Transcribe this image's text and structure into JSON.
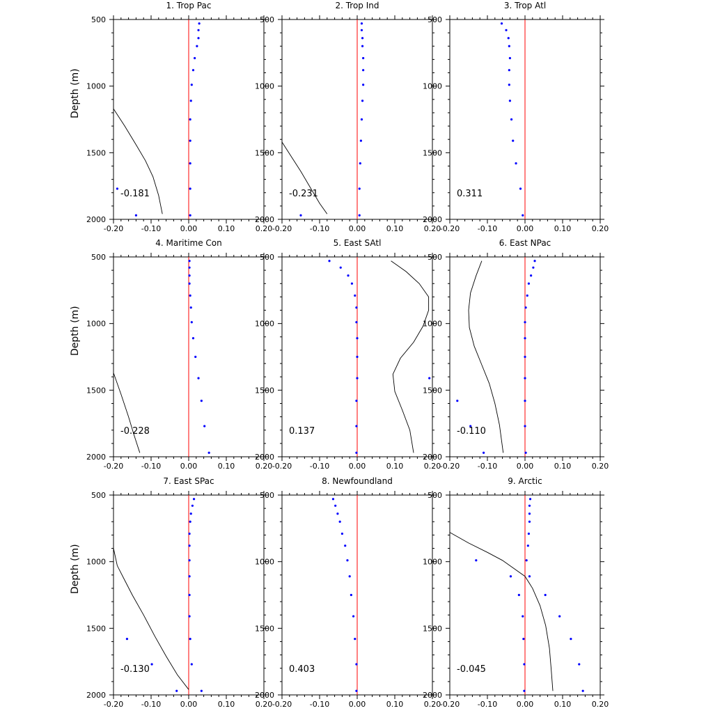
{
  "chart_data": {
    "type": "scatter",
    "ylabel": "Depth (m)",
    "xlim": [
      -0.2,
      0.2
    ],
    "ylim": [
      500,
      2000
    ],
    "y_inverted": true,
    "grid": false,
    "xticks": [
      "-0.20",
      "-0.10",
      "0.00",
      "0.10",
      "0.20"
    ],
    "yticks": [
      "500",
      "1000",
      "1500",
      "2000"
    ],
    "colors": {
      "points": "#0000ff",
      "zero_line": "#ff0000",
      "curve": "#000000"
    },
    "panels": [
      {
        "title": "1. Trop Pac",
        "corr": "-0.181",
        "points": [
          [
            0.028,
            530
          ],
          [
            0.026,
            580
          ],
          [
            0.026,
            640
          ],
          [
            0.022,
            700
          ],
          [
            0.016,
            790
          ],
          [
            0.012,
            880
          ],
          [
            0.008,
            990
          ],
          [
            0.006,
            1110
          ],
          [
            0.004,
            1250
          ],
          [
            0.004,
            1410
          ],
          [
            0.004,
            1580
          ],
          [
            0.004,
            1770
          ],
          [
            0.004,
            1970
          ],
          [
            -0.19,
            1770
          ],
          [
            -0.14,
            1970
          ]
        ],
        "curve": [
          [
            -0.2,
            1170
          ],
          [
            -0.17,
            1300
          ],
          [
            -0.14,
            1440
          ],
          [
            -0.115,
            1560
          ],
          [
            -0.095,
            1680
          ],
          [
            -0.08,
            1820
          ],
          [
            -0.07,
            1960
          ]
        ]
      },
      {
        "title": "2. Trop Ind",
        "corr": "-0.231",
        "points": [
          [
            0.012,
            530
          ],
          [
            0.012,
            580
          ],
          [
            0.014,
            640
          ],
          [
            0.014,
            700
          ],
          [
            0.016,
            790
          ],
          [
            0.016,
            880
          ],
          [
            0.016,
            990
          ],
          [
            0.014,
            1110
          ],
          [
            0.012,
            1250
          ],
          [
            0.01,
            1410
          ],
          [
            0.008,
            1580
          ],
          [
            0.006,
            1770
          ],
          [
            0.006,
            1970
          ],
          [
            -0.15,
            1970
          ]
        ],
        "curve": [
          [
            -0.2,
            1420
          ],
          [
            -0.175,
            1530
          ],
          [
            -0.15,
            1640
          ],
          [
            -0.125,
            1760
          ],
          [
            -0.1,
            1880
          ],
          [
            -0.08,
            1960
          ]
        ]
      },
      {
        "title": "3. Trop Atl",
        "corr": "0.311",
        "points": [
          [
            -0.062,
            530
          ],
          [
            -0.05,
            580
          ],
          [
            -0.044,
            640
          ],
          [
            -0.042,
            700
          ],
          [
            -0.04,
            790
          ],
          [
            -0.042,
            880
          ],
          [
            -0.042,
            990
          ],
          [
            -0.04,
            1110
          ],
          [
            -0.036,
            1250
          ],
          [
            -0.032,
            1410
          ],
          [
            -0.024,
            1580
          ],
          [
            -0.012,
            1770
          ],
          [
            -0.006,
            1970
          ]
        ],
        "curve": []
      },
      {
        "title": "4. Maritime Con",
        "corr": "-0.228",
        "points": [
          [
            0.002,
            530
          ],
          [
            0.002,
            580
          ],
          [
            0.002,
            640
          ],
          [
            0.002,
            700
          ],
          [
            0.004,
            790
          ],
          [
            0.006,
            880
          ],
          [
            0.008,
            990
          ],
          [
            0.012,
            1110
          ],
          [
            0.018,
            1250
          ],
          [
            0.026,
            1410
          ],
          [
            0.034,
            1580
          ],
          [
            0.042,
            1770
          ],
          [
            0.054,
            1970
          ]
        ],
        "curve": [
          [
            -0.2,
            1370
          ],
          [
            -0.18,
            1530
          ],
          [
            -0.16,
            1700
          ],
          [
            -0.145,
            1840
          ],
          [
            -0.13,
            1970
          ]
        ]
      },
      {
        "title": "5. East SAtl",
        "corr": "0.137",
        "points": [
          [
            -0.074,
            530
          ],
          [
            -0.044,
            580
          ],
          [
            -0.024,
            640
          ],
          [
            -0.014,
            700
          ],
          [
            -0.006,
            790
          ],
          [
            -0.002,
            880
          ],
          [
            -0.002,
            990
          ],
          [
            0.0,
            1110
          ],
          [
            0.0,
            1250
          ],
          [
            0.0,
            1410
          ],
          [
            -0.002,
            1580
          ],
          [
            -0.002,
            1770
          ],
          [
            -0.002,
            1970
          ],
          [
            0.192,
            1410
          ]
        ],
        "curve": [
          [
            0.09,
            530
          ],
          [
            0.13,
            610
          ],
          [
            0.165,
            700
          ],
          [
            0.19,
            800
          ],
          [
            0.19,
            900
          ],
          [
            0.175,
            1020
          ],
          [
            0.15,
            1140
          ],
          [
            0.115,
            1260
          ],
          [
            0.095,
            1380
          ],
          [
            0.1,
            1510
          ],
          [
            0.12,
            1650
          ],
          [
            0.14,
            1800
          ],
          [
            0.15,
            1970
          ]
        ]
      },
      {
        "title": "6. East NPac",
        "corr": "-0.110",
        "points": [
          [
            0.026,
            530
          ],
          [
            0.022,
            580
          ],
          [
            0.016,
            640
          ],
          [
            0.01,
            700
          ],
          [
            0.006,
            790
          ],
          [
            0.002,
            880
          ],
          [
            0.0,
            990
          ],
          [
            0.0,
            1110
          ],
          [
            0.0,
            1250
          ],
          [
            0.0,
            1410
          ],
          [
            0.0,
            1580
          ],
          [
            0.0,
            1770
          ],
          [
            0.002,
            1970
          ],
          [
            -0.18,
            1580
          ],
          [
            -0.145,
            1770
          ],
          [
            -0.11,
            1970
          ]
        ],
        "curve": [
          [
            -0.115,
            530
          ],
          [
            -0.13,
            640
          ],
          [
            -0.145,
            770
          ],
          [
            -0.15,
            900
          ],
          [
            -0.148,
            1030
          ],
          [
            -0.135,
            1170
          ],
          [
            -0.115,
            1310
          ],
          [
            -0.095,
            1450
          ],
          [
            -0.08,
            1600
          ],
          [
            -0.068,
            1760
          ],
          [
            -0.058,
            1970
          ]
        ]
      },
      {
        "title": "7. East SPac",
        "corr": "-0.130",
        "points": [
          [
            0.014,
            530
          ],
          [
            0.01,
            580
          ],
          [
            0.006,
            640
          ],
          [
            0.004,
            700
          ],
          [
            0.002,
            790
          ],
          [
            0.002,
            880
          ],
          [
            0.002,
            990
          ],
          [
            0.002,
            1110
          ],
          [
            0.002,
            1250
          ],
          [
            0.002,
            1410
          ],
          [
            0.004,
            1580
          ],
          [
            0.008,
            1770
          ],
          [
            0.034,
            1970
          ],
          [
            -0.164,
            1580
          ],
          [
            -0.098,
            1770
          ],
          [
            -0.032,
            1970
          ]
        ],
        "curve": [
          [
            -0.2,
            900
          ],
          [
            -0.19,
            1030
          ],
          [
            -0.17,
            1140
          ],
          [
            -0.15,
            1250
          ],
          [
            -0.12,
            1400
          ],
          [
            -0.09,
            1560
          ],
          [
            -0.06,
            1710
          ],
          [
            -0.03,
            1850
          ],
          [
            0.0,
            1960
          ]
        ]
      },
      {
        "title": "8. Newfoundland",
        "corr": "0.403",
        "points": [
          [
            -0.064,
            530
          ],
          [
            -0.058,
            580
          ],
          [
            -0.052,
            640
          ],
          [
            -0.046,
            700
          ],
          [
            -0.04,
            790
          ],
          [
            -0.032,
            880
          ],
          [
            -0.026,
            990
          ],
          [
            -0.02,
            1110
          ],
          [
            -0.016,
            1250
          ],
          [
            -0.01,
            1410
          ],
          [
            -0.006,
            1580
          ],
          [
            -0.002,
            1770
          ],
          [
            -0.002,
            1970
          ]
        ],
        "curve": []
      },
      {
        "title": "9. Arctic",
        "corr": "-0.045",
        "points": [
          [
            0.014,
            530
          ],
          [
            0.012,
            580
          ],
          [
            0.012,
            640
          ],
          [
            0.012,
            700
          ],
          [
            0.01,
            790
          ],
          [
            0.008,
            880
          ],
          [
            0.004,
            990
          ],
          [
            0.012,
            1110
          ],
          [
            -0.13,
            990
          ],
          [
            -0.038,
            1110
          ],
          [
            -0.016,
            1250
          ],
          [
            -0.006,
            1410
          ],
          [
            -0.004,
            1580
          ],
          [
            -0.002,
            1770
          ],
          [
            -0.002,
            1970
          ],
          [
            0.054,
            1250
          ],
          [
            0.092,
            1410
          ],
          [
            0.122,
            1580
          ],
          [
            0.144,
            1770
          ],
          [
            0.154,
            1970
          ]
        ],
        "curve": [
          [
            -0.2,
            780
          ],
          [
            -0.15,
            860
          ],
          [
            -0.1,
            930
          ],
          [
            -0.06,
            990
          ],
          [
            -0.03,
            1050
          ],
          [
            0.0,
            1110
          ],
          [
            0.02,
            1200
          ],
          [
            0.04,
            1330
          ],
          [
            0.055,
            1480
          ],
          [
            0.065,
            1650
          ],
          [
            0.07,
            1820
          ],
          [
            0.074,
            1970
          ]
        ]
      }
    ]
  }
}
